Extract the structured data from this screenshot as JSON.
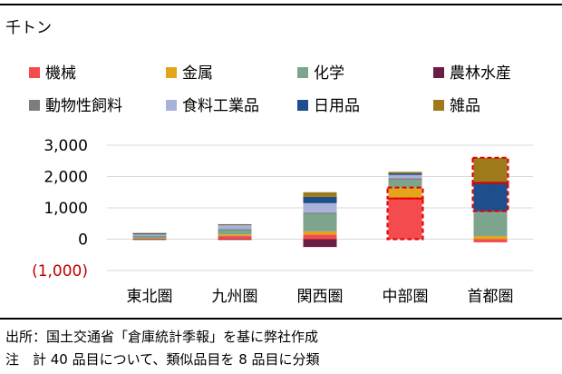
{
  "unit_label": "千トン",
  "source_note": "出所：国土交通省「倉庫統計季報」を基に弊社作成",
  "footnote": "注　計 40 品目について、類似品目を 8 品目に分類",
  "colors": {
    "機械": "#f44b4f",
    "金属": "#e3a51b",
    "化学": "#7da58e",
    "農林水産": "#6b1d45",
    "動物性飼料": "#7d7d7d",
    "食料工業品": "#a9b3da",
    "日用品": "#1f4e8c",
    "雑品": "#9e7a1b",
    "negative_label": "#c00000",
    "highlight_dash": "#e00000"
  },
  "chart_data": {
    "type": "bar",
    "stacked": true,
    "categories": [
      "東北圏",
      "九州圏",
      "関西圏",
      "中部圏",
      "首都圏"
    ],
    "ylim": [
      -1000,
      3000
    ],
    "yticks": [
      -1000,
      0,
      1000,
      2000,
      3000
    ],
    "ytick_labels": [
      "(1,000)",
      "0",
      "1,000",
      "2,000",
      "3,000"
    ],
    "grid": true,
    "legend_position": "top",
    "series": [
      {
        "name": "機械",
        "values": [
          20,
          100,
          150,
          1300,
          -100
        ]
      },
      {
        "name": "金属",
        "values": [
          10,
          50,
          100,
          350,
          100
        ]
      },
      {
        "name": "化学",
        "values": [
          60,
          140,
          550,
          250,
          750
        ]
      },
      {
        "name": "農林水産",
        "values": [
          -20,
          -10,
          -250,
          0,
          0
        ]
      },
      {
        "name": "動物性飼料",
        "values": [
          20,
          30,
          50,
          50,
          50
        ]
      },
      {
        "name": "食料工業品",
        "values": [
          40,
          140,
          300,
          100,
          0
        ]
      },
      {
        "name": "日用品",
        "values": [
          40,
          10,
          200,
          50,
          900
        ]
      },
      {
        "name": "雑品",
        "values": [
          10,
          10,
          150,
          50,
          800
        ]
      }
    ],
    "highlights": [
      {
        "category": "中部圏",
        "series": [
          "機械",
          "金属"
        ]
      },
      {
        "category": "首都圏",
        "series": [
          "日用品",
          "雑品"
        ]
      }
    ]
  }
}
